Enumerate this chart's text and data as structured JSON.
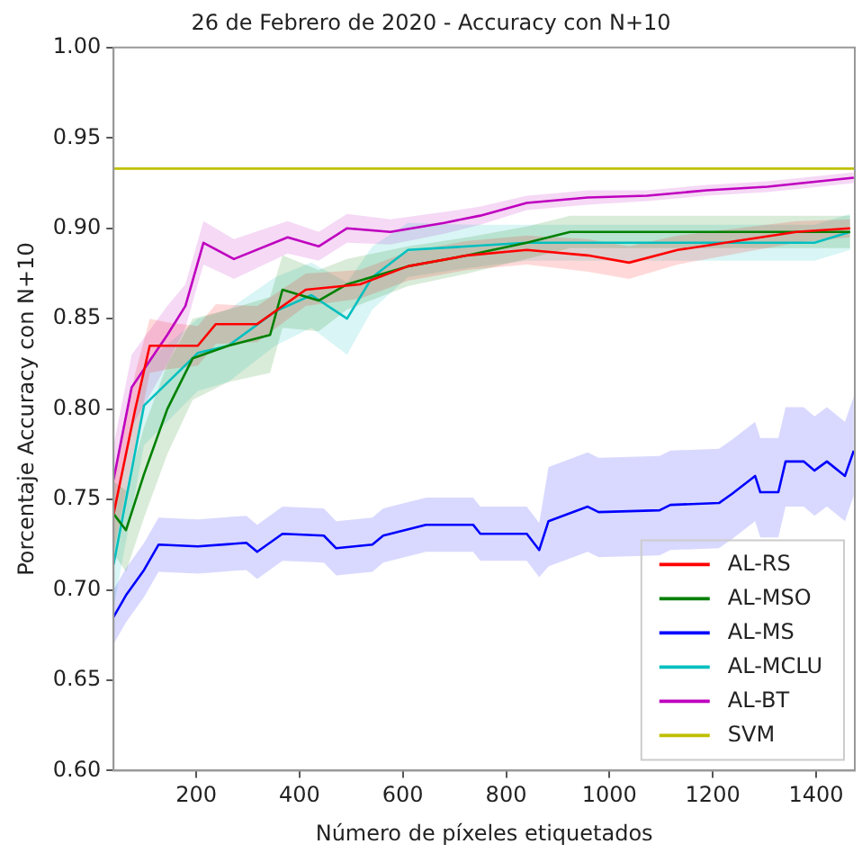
{
  "chart_data": {
    "type": "line",
    "title": "26 de Febrero de 2020 - Accuracy con N+10",
    "xlabel": "Número de píxeles etiquetados",
    "ylabel": "Porcentaje Accuracy con N+10",
    "xlim": [
      40,
      1475
    ],
    "ylim": [
      0.6,
      1.0
    ],
    "xticks": [
      200,
      400,
      600,
      800,
      1000,
      1200,
      1400
    ],
    "yticks": [
      {
        "value": 0.6,
        "label": "0.60"
      },
      {
        "value": 0.65,
        "label": "0.65"
      },
      {
        "value": 0.7,
        "label": "0.70"
      },
      {
        "value": 0.75,
        "label": "0.75"
      },
      {
        "value": 0.8,
        "label": "0.80"
      },
      {
        "value": 0.85,
        "label": "0.85"
      },
      {
        "value": 0.9,
        "label": "0.90"
      },
      {
        "value": 0.95,
        "label": "0.95"
      },
      {
        "value": 1.0,
        "label": "1.00"
      }
    ],
    "grid": false,
    "legend": "bottom right",
    "line_style": "solid",
    "marker": "none",
    "series": [
      {
        "name": "AL-RS",
        "color": "#ff0000",
        "x": [
          40,
          82,
          110,
          144,
          203,
          238,
          318,
          412,
          517,
          610,
          725,
          840,
          958,
          1038,
          1132,
          1247,
          1362,
          1466
        ],
        "values": [
          0.742,
          0.8,
          0.835,
          0.835,
          0.835,
          0.847,
          0.847,
          0.866,
          0.869,
          0.879,
          0.885,
          0.888,
          0.885,
          0.881,
          0.888,
          0.893,
          0.898,
          0.9
        ],
        "lower": [
          0.72,
          0.78,
          0.82,
          0.822,
          0.824,
          0.836,
          0.837,
          0.857,
          0.861,
          0.871,
          0.877,
          0.88,
          0.876,
          0.872,
          0.88,
          0.886,
          0.892,
          0.895
        ],
        "upper": [
          0.76,
          0.82,
          0.85,
          0.848,
          0.846,
          0.858,
          0.857,
          0.875,
          0.877,
          0.887,
          0.893,
          0.896,
          0.894,
          0.89,
          0.896,
          0.9,
          0.904,
          0.905
        ]
      },
      {
        "name": "AL-MSO",
        "color": "#008000",
        "x": [
          40,
          64,
          99,
          144,
          193,
          262,
          343,
          367,
          437,
          492,
          610,
          725,
          840,
          924,
          1073,
          1306,
          1466
        ],
        "values": [
          0.742,
          0.733,
          0.764,
          0.8,
          0.828,
          0.835,
          0.841,
          0.866,
          0.86,
          0.869,
          0.879,
          0.885,
          0.892,
          0.898,
          0.898,
          0.898,
          0.898
        ],
        "lower": [
          0.72,
          0.71,
          0.74,
          0.775,
          0.805,
          0.815,
          0.82,
          0.845,
          0.843,
          0.855,
          0.868,
          0.875,
          0.883,
          0.889,
          0.889,
          0.889,
          0.889
        ],
        "upper": [
          0.76,
          0.755,
          0.79,
          0.825,
          0.85,
          0.855,
          0.862,
          0.885,
          0.877,
          0.883,
          0.89,
          0.895,
          0.901,
          0.907,
          0.907,
          0.907,
          0.907
        ]
      },
      {
        "name": "AL-MS",
        "color": "#0000ff",
        "x": [
          40,
          64,
          99,
          127,
          203,
          297,
          318,
          367,
          447,
          471,
          541,
          562,
          645,
          736,
          750,
          840,
          864,
          882,
          958,
          979,
          1097,
          1118,
          1212,
          1237,
          1282,
          1292,
          1327,
          1341,
          1376,
          1397,
          1421,
          1456,
          1473
        ],
        "values": [
          0.685,
          0.697,
          0.711,
          0.725,
          0.724,
          0.726,
          0.721,
          0.731,
          0.73,
          0.723,
          0.725,
          0.73,
          0.736,
          0.736,
          0.731,
          0.731,
          0.722,
          0.738,
          0.746,
          0.743,
          0.744,
          0.747,
          0.748,
          0.753,
          0.763,
          0.754,
          0.754,
          0.771,
          0.771,
          0.766,
          0.771,
          0.763,
          0.777
        ],
        "lower": [
          0.67,
          0.682,
          0.696,
          0.71,
          0.709,
          0.711,
          0.706,
          0.716,
          0.715,
          0.708,
          0.71,
          0.715,
          0.721,
          0.721,
          0.716,
          0.716,
          0.707,
          0.713,
          0.721,
          0.718,
          0.719,
          0.722,
          0.723,
          0.728,
          0.738,
          0.729,
          0.729,
          0.746,
          0.746,
          0.741,
          0.746,
          0.738,
          0.752
        ],
        "upper": [
          0.7,
          0.712,
          0.726,
          0.74,
          0.739,
          0.741,
          0.736,
          0.746,
          0.745,
          0.738,
          0.74,
          0.745,
          0.751,
          0.751,
          0.746,
          0.746,
          0.737,
          0.768,
          0.776,
          0.773,
          0.774,
          0.777,
          0.778,
          0.783,
          0.793,
          0.784,
          0.784,
          0.801,
          0.801,
          0.796,
          0.801,
          0.793,
          0.807
        ]
      },
      {
        "name": "AL-MCLU",
        "color": "#00bfbf",
        "x": [
          40,
          99,
          203,
          262,
          353,
          423,
          492,
          541,
          610,
          725,
          840,
          1073,
          1397,
          1466
        ],
        "values": [
          0.714,
          0.802,
          0.831,
          0.835,
          0.854,
          0.863,
          0.85,
          0.873,
          0.888,
          0.89,
          0.892,
          0.892,
          0.892,
          0.898
        ],
        "lower": [
          0.69,
          0.78,
          0.81,
          0.815,
          0.835,
          0.845,
          0.83,
          0.855,
          0.873,
          0.878,
          0.882,
          0.882,
          0.882,
          0.888
        ],
        "upper": [
          0.74,
          0.825,
          0.85,
          0.855,
          0.873,
          0.881,
          0.87,
          0.89,
          0.903,
          0.902,
          0.902,
          0.902,
          0.902,
          0.908
        ]
      },
      {
        "name": "AL-BT",
        "color": "#bf00bf",
        "x": [
          40,
          75,
          144,
          179,
          214,
          273,
          377,
          437,
          492,
          576,
          680,
          750,
          840,
          958,
          1073,
          1188,
          1306,
          1473
        ],
        "values": [
          0.761,
          0.812,
          0.841,
          0.857,
          0.892,
          0.883,
          0.895,
          0.89,
          0.9,
          0.898,
          0.903,
          0.907,
          0.914,
          0.917,
          0.918,
          0.921,
          0.923,
          0.928
        ],
        "lower": [
          0.74,
          0.79,
          0.825,
          0.845,
          0.88,
          0.872,
          0.886,
          0.882,
          0.892,
          0.891,
          0.897,
          0.902,
          0.91,
          0.913,
          0.915,
          0.918,
          0.92,
          0.925
        ],
        "upper": [
          0.78,
          0.83,
          0.857,
          0.869,
          0.904,
          0.894,
          0.904,
          0.898,
          0.908,
          0.905,
          0.909,
          0.912,
          0.918,
          0.921,
          0.921,
          0.924,
          0.926,
          0.931
        ]
      },
      {
        "name": "SVM",
        "color": "#bfbf00",
        "x": [
          40,
          1475
        ],
        "values": [
          0.933,
          0.933
        ]
      }
    ]
  }
}
